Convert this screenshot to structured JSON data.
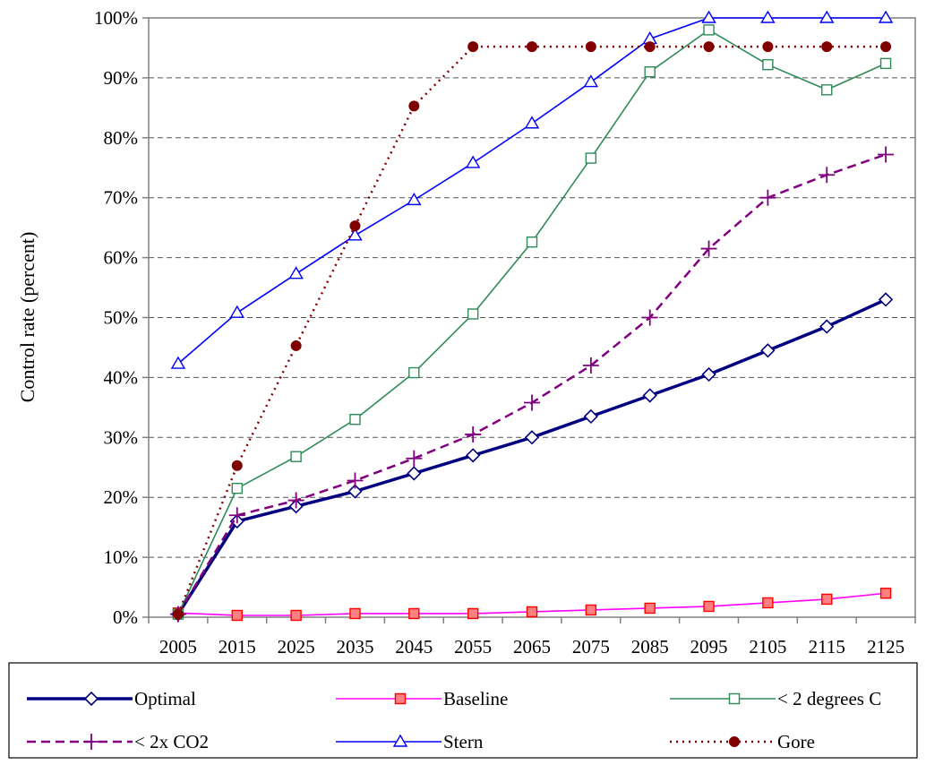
{
  "chart_data": {
    "type": "line",
    "title": "",
    "xlabel": "",
    "ylabel": "Control rate (percent)",
    "x": [
      "2005",
      "2015",
      "2025",
      "2035",
      "2045",
      "2055",
      "2065",
      "2075",
      "2085",
      "2095",
      "2105",
      "2115",
      "2125"
    ],
    "ylim": [
      0,
      100
    ],
    "yticks": [
      "0%",
      "10%",
      "20%",
      "30%",
      "40%",
      "50%",
      "60%",
      "70%",
      "80%",
      "90%",
      "100%"
    ],
    "grid": "horizontal dashed",
    "legend_position": "bottom",
    "series": [
      {
        "name": "Optimal",
        "color": "#000080",
        "marker": "diamond",
        "line": "solid-thick",
        "values": [
          0.5,
          16,
          18.5,
          21,
          24,
          27,
          30,
          33.5,
          37,
          40.5,
          44.5,
          48.5,
          53
        ]
      },
      {
        "name": "Baseline",
        "color": "#ff00ff",
        "marker": "square-filled",
        "line": "solid",
        "values": [
          0.7,
          0.3,
          0.3,
          0.6,
          0.6,
          0.6,
          0.9,
          1.2,
          1.5,
          1.8,
          2.4,
          3.0,
          4.0
        ]
      },
      {
        "name": "< 2 degrees C",
        "color": "#2e8b57",
        "marker": "square-open",
        "line": "solid",
        "values": [
          0.5,
          21.5,
          26.8,
          33,
          40.8,
          50.6,
          62.6,
          76.6,
          91,
          98,
          92.2,
          88,
          92.4
        ]
      },
      {
        "name": "< 2x CO2",
        "color": "#800080",
        "marker": "plus",
        "line": "dashed",
        "values": [
          0.5,
          17,
          19.5,
          22.8,
          26.5,
          30.5,
          35.8,
          42,
          50,
          61.5,
          70,
          73.8,
          77.2
        ]
      },
      {
        "name": "Stern",
        "color": "#0000ff",
        "marker": "triangle",
        "line": "solid",
        "values": [
          42.3,
          50.8,
          57.3,
          63.7,
          69.6,
          75.8,
          82.4,
          89.3,
          96.5,
          100,
          100,
          100,
          100
        ]
      },
      {
        "name": "Gore",
        "color": "#800000",
        "marker": "circle",
        "line": "dotted",
        "values": [
          0.5,
          25.3,
          45.3,
          65.3,
          85.3,
          95.2,
          95.2,
          95.2,
          95.2,
          95.2,
          95.2,
          95.2,
          95.2
        ]
      }
    ]
  }
}
